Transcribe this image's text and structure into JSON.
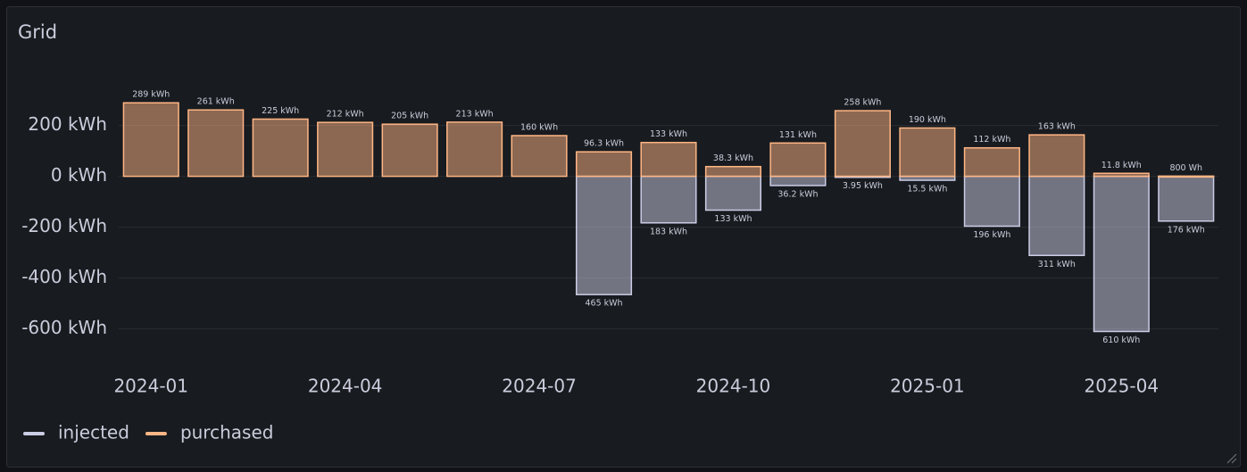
{
  "chart_data": {
    "type": "bar",
    "title": "Grid",
    "categories": [
      "2024-01",
      null,
      null,
      "2024-04",
      null,
      null,
      "2024-07",
      null,
      null,
      "2024-10",
      null,
      null,
      "2025-01",
      null,
      null,
      "2025-04",
      null
    ],
    "series": [
      {
        "name": "injected",
        "color": "#cbcde6",
        "values": [
          null,
          null,
          null,
          null,
          null,
          null,
          null,
          -465,
          -183,
          -133,
          -36.2,
          -3.95,
          -15.5,
          -196,
          -311,
          -610,
          -176
        ],
        "value_labels": [
          null,
          null,
          null,
          null,
          null,
          null,
          null,
          "465 kWh",
          "183 kWh",
          "133 kWh",
          "36.2 kWh",
          "3.95 kWh",
          "15.5 kWh",
          "196 kWh",
          "311 kWh",
          "610 kWh",
          "176 kWh"
        ]
      },
      {
        "name": "purchased",
        "color": "#ffb685",
        "values": [
          289,
          261,
          225,
          212,
          205,
          213,
          160,
          96.3,
          133,
          38.3,
          131,
          258,
          190,
          112,
          163,
          11.8,
          0.8
        ],
        "value_labels": [
          "289 kWh",
          "261 kWh",
          "225 kWh",
          "212 kWh",
          "205 kWh",
          "213 kWh",
          "160 kWh",
          "96.3 kWh",
          "133 kWh",
          "38.3 kWh",
          "131 kWh",
          "258 kWh",
          "190 kWh",
          "112 kWh",
          "163 kWh",
          "11.8 kWh",
          "800 Wh"
        ]
      }
    ],
    "ylim": [
      -710,
      360
    ],
    "yticks": [
      {
        "value": 200,
        "label": "200 kWh"
      },
      {
        "value": 0,
        "label": "0 kWh"
      },
      {
        "value": -200,
        "label": "-200 kWh"
      },
      {
        "value": -400,
        "label": "-400 kWh"
      },
      {
        "value": -600,
        "label": "-600 kWh"
      }
    ],
    "grid": true
  }
}
